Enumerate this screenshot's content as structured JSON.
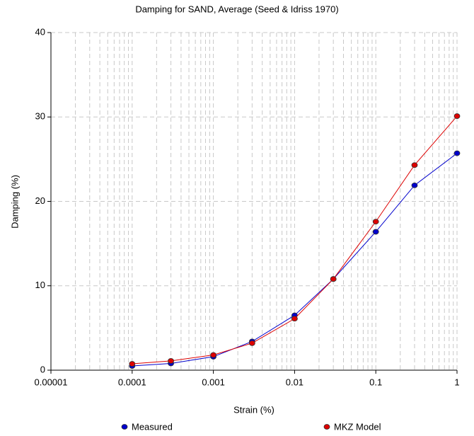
{
  "chart_data": {
    "type": "line",
    "title": "Damping for SAND, Average (Seed & Idriss 1970)",
    "xlabel": "Strain (%)",
    "ylabel": "Damping (%)",
    "x": [
      0.0001,
      0.0003,
      0.001,
      0.003,
      0.01,
      0.03,
      0.1,
      0.3,
      1
    ],
    "series": [
      {
        "name": "Measured",
        "color": "#0000cc",
        "values": [
          0.5,
          0.8,
          1.6,
          3.4,
          6.5,
          10.8,
          16.4,
          21.9,
          25.7
        ]
      },
      {
        "name": "MKZ Model",
        "color": "#dd0000",
        "values": [
          0.75,
          1.1,
          1.8,
          3.2,
          6.1,
          10.8,
          17.6,
          24.3,
          30.1
        ]
      }
    ],
    "xlog": true,
    "xlim": [
      1e-05,
      1
    ],
    "xticks": [
      1e-05,
      0.0001,
      0.001,
      0.01,
      0.1,
      1
    ],
    "ylim": [
      0,
      40
    ],
    "yticks": [
      0,
      10,
      20,
      30,
      40
    ],
    "grid": true,
    "legend": "bottom"
  }
}
